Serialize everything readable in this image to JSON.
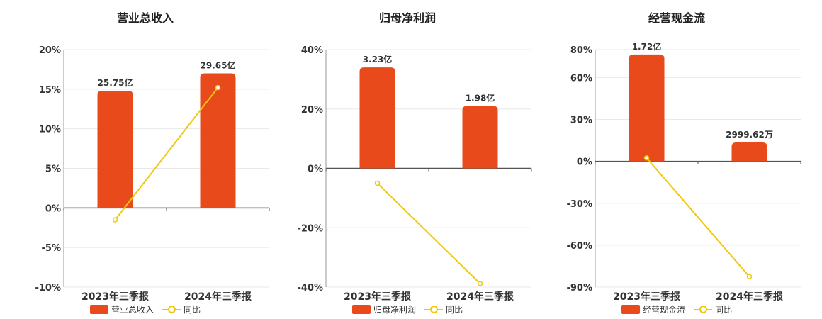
{
  "colors": {
    "bar": "#e84a1b",
    "line": "#f0c808",
    "grid": "#e8e8e8",
    "axis": "#555555"
  },
  "chart_data": [
    {
      "type": "bar",
      "title": "营业总收入",
      "categories": [
        "2023年三季报",
        "2024年三季报"
      ],
      "series": [
        {
          "name": "营业总收入",
          "type": "bar",
          "values": [
            14.8,
            17.0
          ],
          "labels": [
            "25.75亿",
            "29.65亿"
          ]
        },
        {
          "name": "同比",
          "type": "line",
          "values": [
            -1.5,
            15.2
          ]
        }
      ],
      "ylim": [
        -10,
        20
      ],
      "yticks": [
        20,
        15,
        10,
        5,
        0,
        -5,
        -10
      ],
      "ytick_labels": [
        "20%",
        "15%",
        "10%",
        "5%",
        "0%",
        "-5%",
        "-10%"
      ],
      "grid": true,
      "legend": "bottom"
    },
    {
      "type": "bar",
      "title": "归母净利润",
      "categories": [
        "2023年三季报",
        "2024年三季报"
      ],
      "series": [
        {
          "name": "归母净利润",
          "type": "bar",
          "values": [
            34.0,
            21.0
          ],
          "labels": [
            "3.23亿",
            "1.98亿"
          ]
        },
        {
          "name": "同比",
          "type": "line",
          "values": [
            -5,
            -38.8
          ]
        }
      ],
      "ylim": [
        -40,
        40
      ],
      "yticks": [
        40,
        20,
        0,
        -20,
        -40
      ],
      "ytick_labels": [
        "40%",
        "20%",
        "0%",
        "-20%",
        "-40%"
      ],
      "grid": true,
      "legend": "bottom"
    },
    {
      "type": "bar",
      "title": "经营现金流",
      "categories": [
        "2023年三季报",
        "2024年三季报"
      ],
      "series": [
        {
          "name": "经营现金流",
          "type": "bar",
          "values": [
            76.5,
            13.5
          ],
          "labels": [
            "1.72亿",
            "2999.62万"
          ]
        },
        {
          "name": "同比",
          "type": "line",
          "values": [
            2.5,
            -82.5
          ]
        }
      ],
      "ylim": [
        -90,
        80
      ],
      "yticks": [
        80,
        60,
        30,
        0,
        -30,
        -60,
        -90
      ],
      "ytick_labels": [
        "80%",
        "60%",
        "30%",
        "0%",
        "-30%",
        "-60%",
        "-90%"
      ],
      "grid": true,
      "legend": "bottom"
    }
  ]
}
